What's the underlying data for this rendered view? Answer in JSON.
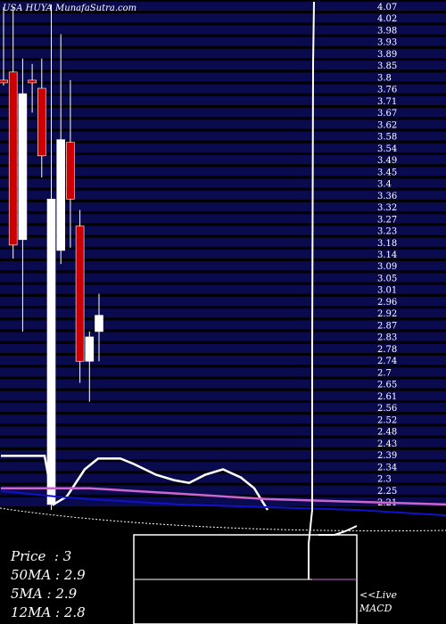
{
  "header": {
    "title": "USA HUYA MunafaSutra.com"
  },
  "info": {
    "price_label": "Price",
    "price_value": "3",
    "ma50_label": "50MA",
    "ma50_value": "2.9",
    "ma5_label": "5MA",
    "ma5_value": "2.9",
    "ma12_label": "12MA",
    "ma12_value": "2.8"
  },
  "macd": {
    "live_label": "<<Live",
    "macd_label": "MACD"
  },
  "colors": {
    "background": "#000000",
    "band": "#0a0a4e",
    "bull": "#ffffff",
    "bear": "#cc0000",
    "ma_short": "#ffffff",
    "ma_mid": "#cc66cc",
    "ma_long": "#1111cc",
    "text": "#ffffff"
  },
  "chart_data": {
    "type": "candlestick",
    "ylim": [
      2.2,
      4.08
    ],
    "y_ticks": [
      "4.07",
      "4.02",
      "3.98",
      "3.93",
      "3.89",
      "3.85",
      "3.8",
      "3.76",
      "3.71",
      "3.67",
      "3.62",
      "3.58",
      "3.54",
      "3.49",
      "3.45",
      "3.4",
      "3.36",
      "3.32",
      "3.27",
      "3.23",
      "3.18",
      "3.14",
      "3.09",
      "3.05",
      "3.01",
      "2.96",
      "2.92",
      "2.87",
      "2.83",
      "2.78",
      "2.74",
      "2.7",
      "2.65",
      "2.61",
      "2.56",
      "2.52",
      "2.48",
      "2.43",
      "2.39",
      "2.34",
      "2.3",
      "2.25",
      "2.21"
    ],
    "candles": [
      {
        "open": 3.79,
        "high": 4.06,
        "low": 3.77,
        "close": 3.78
      },
      {
        "open": 3.82,
        "high": 4.06,
        "low": 3.13,
        "close": 3.18
      },
      {
        "open": 3.2,
        "high": 3.87,
        "low": 2.86,
        "close": 3.74
      },
      {
        "open": 3.79,
        "high": 3.85,
        "low": 3.67,
        "close": 3.78
      },
      {
        "open": 3.76,
        "high": 3.87,
        "low": 3.43,
        "close": 3.51
      },
      {
        "open": 2.22,
        "high": 4.07,
        "low": 2.2,
        "close": 3.35
      },
      {
        "open": 3.16,
        "high": 3.96,
        "low": 3.11,
        "close": 3.57
      },
      {
        "open": 3.56,
        "high": 3.79,
        "low": 3.17,
        "close": 3.35
      },
      {
        "open": 3.25,
        "high": 3.31,
        "low": 2.67,
        "close": 2.75
      },
      {
        "open": 2.75,
        "high": 2.86,
        "low": 2.6,
        "close": 2.84
      },
      {
        "open": 2.86,
        "high": 3.0,
        "low": 2.75,
        "close": 2.92
      }
    ],
    "ma_series": [
      {
        "values": [
          [
            1,
            2.4
          ],
          [
            50,
            2.4
          ],
          [
            60,
            2.22
          ],
          [
            75,
            2.25
          ],
          [
            95,
            2.35
          ],
          [
            110,
            2.39
          ],
          [
            135,
            2.39
          ],
          [
            150,
            2.37
          ],
          [
            175,
            2.33
          ],
          [
            195,
            2.31
          ],
          [
            212,
            2.3
          ],
          [
            230,
            2.33
          ],
          [
            250,
            2.35
          ],
          [
            270,
            2.32
          ],
          [
            285,
            2.28
          ],
          [
            300,
            2.2
          ]
        ]
      },
      {
        "values": [
          [
            1,
            2.28
          ],
          [
            100,
            2.28
          ],
          [
            200,
            2.26
          ],
          [
            300,
            2.24
          ],
          [
            400,
            2.23
          ],
          [
            500,
            2.22
          ]
        ]
      },
      {
        "values": [
          [
            1,
            2.27
          ],
          [
            60,
            2.25
          ],
          [
            100,
            2.24
          ],
          [
            200,
            2.22
          ],
          [
            300,
            2.21
          ],
          [
            400,
            2.2
          ],
          [
            500,
            2.18
          ]
        ]
      }
    ],
    "macd": {
      "white_line": [
        [
          350,
          2.2
        ],
        [
          350,
          2.8
        ],
        [
          351,
          3.85
        ],
        [
          352,
          4.08
        ]
      ],
      "panel_line": [
        [
          357,
          0.0
        ],
        [
          375,
          0.0
        ],
        [
          387,
          0.2
        ],
        [
          400,
          0.5
        ]
      ]
    }
  }
}
